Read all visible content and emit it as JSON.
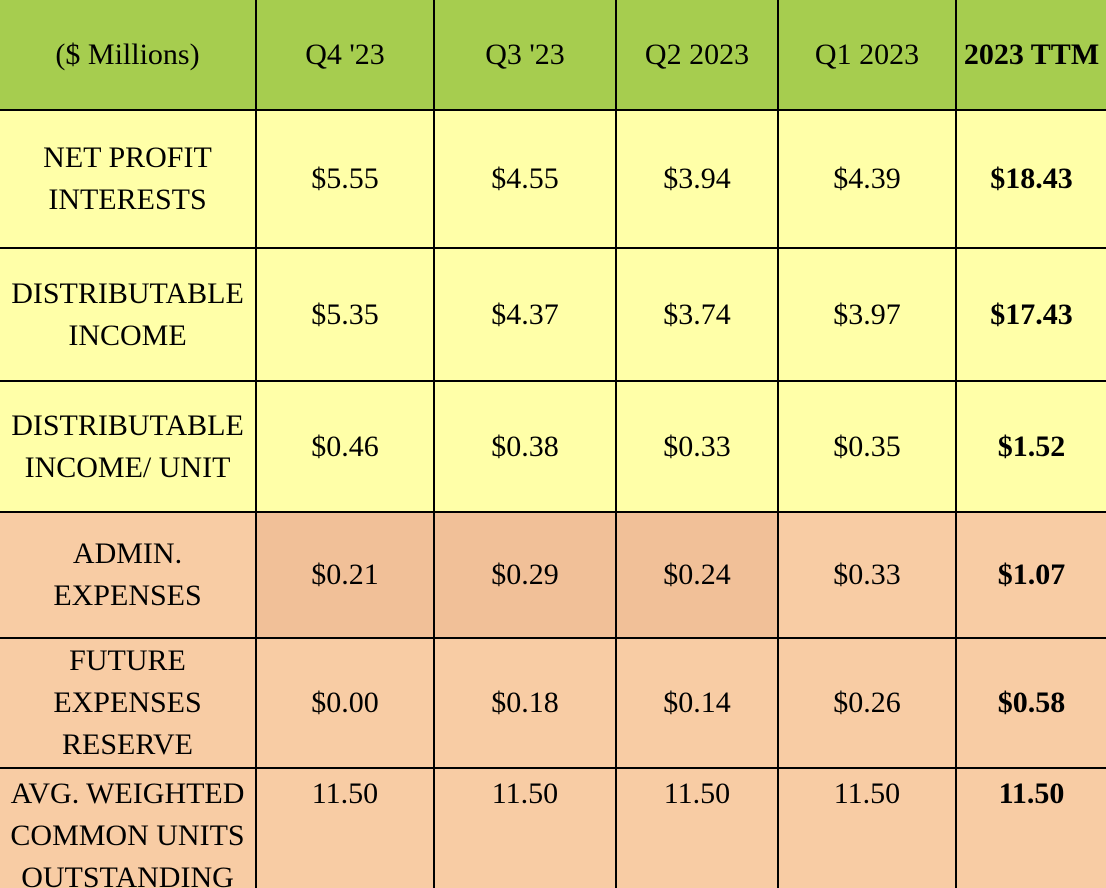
{
  "table": {
    "header": [
      "($ Millions)",
      "Q4 '23",
      "Q3 '23",
      "Q2 2023",
      "Q1 2023",
      "2023 TTM"
    ],
    "rows": [
      [
        "NET PROFIT INTERESTS",
        "$5.55",
        "$4.55",
        "$3.94",
        "$4.39",
        "$18.43"
      ],
      [
        "DISTRIBUTABLE INCOME",
        "$5.35",
        "$4.37",
        "$3.74",
        "$3.97",
        "$17.43"
      ],
      [
        "DISTRIBUTABLE INCOME/ UNIT",
        "$0.46",
        "$0.38",
        "$0.33",
        "$0.35",
        "$1.52"
      ],
      [
        "ADMIN. EXPENSES",
        "$0.21",
        "$0.29",
        "$0.24",
        "$0.33",
        "$1.07"
      ],
      [
        "FUTURE EXPENSES RESERVE",
        "$0.00",
        "$0.18",
        "$0.14",
        "$0.26",
        "$0.58"
      ],
      [
        "AVG. WEIGHTED COMMON UNITS OUTSTANDING",
        "11.50",
        "11.50",
        "11.50",
        "11.50",
        "11.50"
      ]
    ]
  }
}
